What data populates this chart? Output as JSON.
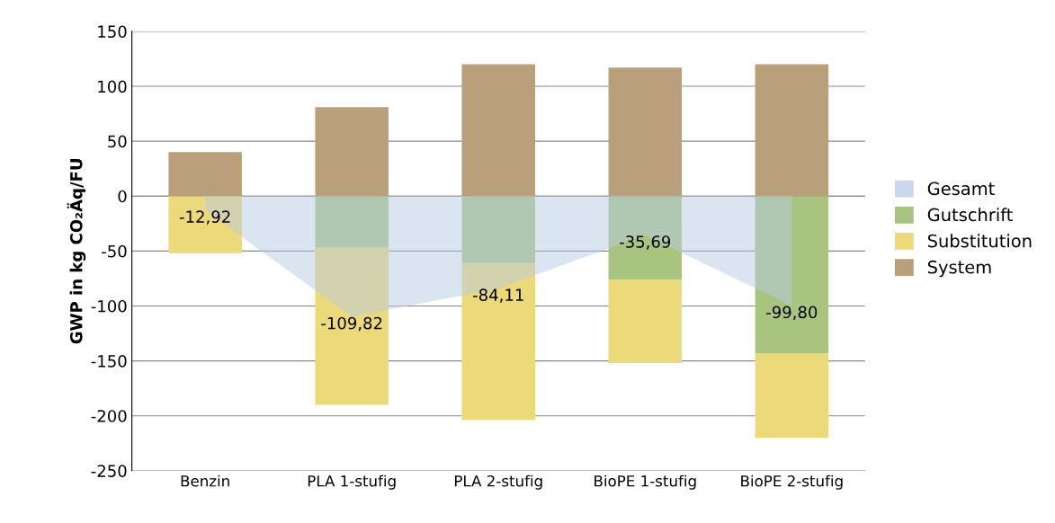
{
  "chart_data": {
    "type": "bar",
    "stacked": true,
    "ylabel": "GWP in kg CO₂Äq/FU",
    "categories": [
      "Benzin",
      "PLA 1-stufig",
      "PLA 2-stufig",
      "BioPE 1-stufig",
      "BioPE 2-stufig"
    ],
    "series": [
      {
        "name": "Gesamt",
        "type": "area",
        "color": "#b8cce4",
        "values": [
          -12.92,
          -109.82,
          -84.11,
          -35.69,
          -99.8
        ],
        "value_labels": [
          "-12,92",
          "-109,82",
          "-84,11",
          "-35,69",
          "-99,80"
        ]
      },
      {
        "name": "Gutschrift",
        "color": "#a9c47f",
        "values": [
          0,
          -47,
          -61,
          -76,
          -143
        ]
      },
      {
        "name": "Substitution",
        "color": "#ecd97a",
        "values": [
          -52,
          -143,
          -143,
          -76,
          -77
        ]
      },
      {
        "name": "System",
        "color": "#b9a07a",
        "values": [
          40,
          81,
          120,
          117,
          120
        ]
      }
    ],
    "ylim": [
      -250,
      150
    ],
    "yticks": [
      -250,
      -200,
      -150,
      -100,
      -50,
      0,
      50,
      100,
      150
    ],
    "grid": "y",
    "legend": "right"
  }
}
